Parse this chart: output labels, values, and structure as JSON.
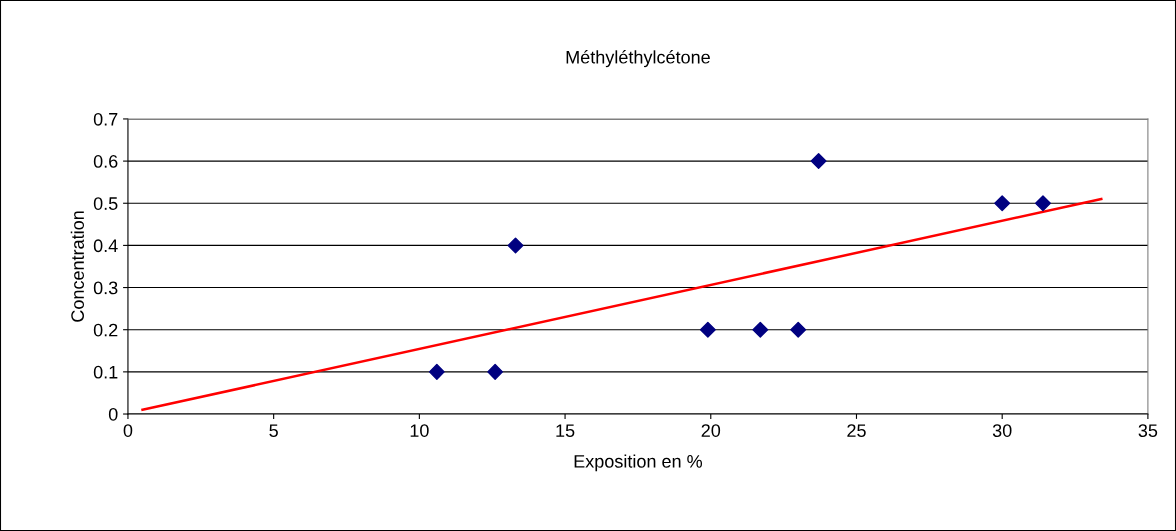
{
  "chart_data": {
    "type": "scatter",
    "title": "Méthyléthylcétone",
    "xlabel": "Exposition en %",
    "ylabel": "Concentration",
    "series": [
      {
        "color": "#000080",
        "marker": "diamond",
        "x": [
          10.6,
          12.6,
          13.3,
          19.9,
          21.7,
          23.0,
          23.7,
          30.0,
          31.4
        ],
        "values": [
          0.1,
          0.1,
          0.4,
          0.2,
          0.2,
          0.2,
          0.6,
          0.5,
          0.5
        ]
      },
      {
        "type": "line",
        "color": "#ff0000",
        "marker": "none",
        "line_style": "solid",
        "x": [
          0.5,
          33.4
        ],
        "values": [
          0.01,
          0.51
        ]
      }
    ],
    "xlim": [
      0,
      35
    ],
    "xticks": [
      0,
      5,
      10,
      15,
      20,
      25,
      30,
      35
    ],
    "ylim": [
      0,
      0.7
    ],
    "yticks": [
      0,
      0.1,
      0.2,
      0.3,
      0.4,
      0.5,
      0.6,
      0.7
    ],
    "grid": "y",
    "legend": false
  }
}
